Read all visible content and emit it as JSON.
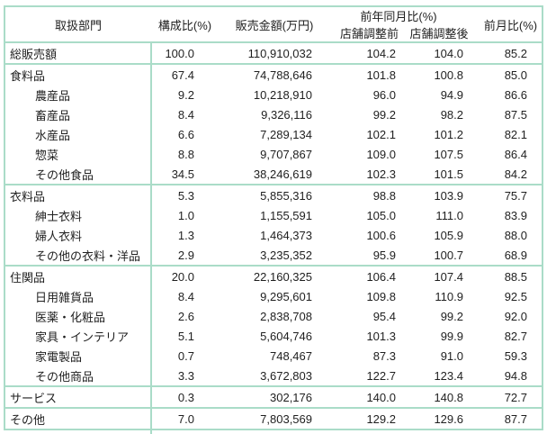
{
  "colors": {
    "border": "#aadcc8",
    "text": "#1f1f1f",
    "background": "#ffffff"
  },
  "table": {
    "headers": {
      "department": "取扱部門",
      "composition": "構成比(%)",
      "sales": "販売金額(万円)",
      "yoy": "前年同月比(%)",
      "yoy_before": "店舗調整前",
      "yoy_after": "店舗調整後",
      "mom": "前月比(%)"
    },
    "rows": [
      {
        "label": "総販売額",
        "composition": "100.0",
        "sales": "110,910,032",
        "yoy_before": "104.2",
        "yoy_after": "104.0",
        "mom": "85.2",
        "indent": false,
        "section_start": false
      },
      {
        "label": "食料品",
        "composition": "67.4",
        "sales": "74,788,646",
        "yoy_before": "101.8",
        "yoy_after": "100.8",
        "mom": "85.0",
        "indent": false,
        "section_start": true
      },
      {
        "label": "農産品",
        "composition": "9.2",
        "sales": "10,218,910",
        "yoy_before": "96.0",
        "yoy_after": "94.9",
        "mom": "86.6",
        "indent": true,
        "section_start": false
      },
      {
        "label": "畜産品",
        "composition": "8.4",
        "sales": "9,326,116",
        "yoy_before": "99.2",
        "yoy_after": "98.2",
        "mom": "87.5",
        "indent": true,
        "section_start": false
      },
      {
        "label": "水産品",
        "composition": "6.6",
        "sales": "7,289,134",
        "yoy_before": "102.1",
        "yoy_after": "101.2",
        "mom": "82.1",
        "indent": true,
        "section_start": false
      },
      {
        "label": "惣菜",
        "composition": "8.8",
        "sales": "9,707,867",
        "yoy_before": "109.0",
        "yoy_after": "107.5",
        "mom": "86.4",
        "indent": true,
        "section_start": false
      },
      {
        "label": "その他食品",
        "composition": "34.5",
        "sales": "38,246,619",
        "yoy_before": "102.3",
        "yoy_after": "101.5",
        "mom": "84.2",
        "indent": true,
        "section_start": false
      },
      {
        "label": "衣料品",
        "composition": "5.3",
        "sales": "5,855,316",
        "yoy_before": "98.8",
        "yoy_after": "103.9",
        "mom": "75.7",
        "indent": false,
        "section_start": true
      },
      {
        "label": "紳士衣料",
        "composition": "1.0",
        "sales": "1,155,591",
        "yoy_before": "105.0",
        "yoy_after": "111.0",
        "mom": "83.9",
        "indent": true,
        "section_start": false
      },
      {
        "label": "婦人衣料",
        "composition": "1.3",
        "sales": "1,464,373",
        "yoy_before": "100.6",
        "yoy_after": "105.9",
        "mom": "88.0",
        "indent": true,
        "section_start": false
      },
      {
        "label": "その他の衣料・洋品",
        "composition": "2.9",
        "sales": "3,235,352",
        "yoy_before": "95.9",
        "yoy_after": "100.7",
        "mom": "68.9",
        "indent": true,
        "section_start": false
      },
      {
        "label": "住関品",
        "composition": "20.0",
        "sales": "22,160,325",
        "yoy_before": "106.4",
        "yoy_after": "107.4",
        "mom": "88.5",
        "indent": false,
        "section_start": true
      },
      {
        "label": "日用雑貨品",
        "composition": "8.4",
        "sales": "9,295,601",
        "yoy_before": "109.8",
        "yoy_after": "110.9",
        "mom": "92.5",
        "indent": true,
        "section_start": false
      },
      {
        "label": "医薬・化粧品",
        "composition": "2.6",
        "sales": "2,838,708",
        "yoy_before": "95.4",
        "yoy_after": "99.2",
        "mom": "92.0",
        "indent": true,
        "section_start": false
      },
      {
        "label": "家具・インテリア",
        "composition": "5.1",
        "sales": "5,604,746",
        "yoy_before": "101.3",
        "yoy_after": "99.9",
        "mom": "82.7",
        "indent": true,
        "section_start": false
      },
      {
        "label": "家電製品",
        "composition": "0.7",
        "sales": "748,467",
        "yoy_before": "87.3",
        "yoy_after": "91.0",
        "mom": "59.3",
        "indent": true,
        "section_start": false
      },
      {
        "label": "その他商品",
        "composition": "3.3",
        "sales": "3,672,803",
        "yoy_before": "122.7",
        "yoy_after": "123.4",
        "mom": "94.8",
        "indent": true,
        "section_start": false
      },
      {
        "label": "サービス",
        "composition": "0.3",
        "sales": "302,176",
        "yoy_before": "140.0",
        "yoy_after": "140.8",
        "mom": "72.7",
        "indent": false,
        "section_start": true
      },
      {
        "label": "その他",
        "composition": "7.0",
        "sales": "7,803,569",
        "yoy_before": "129.2",
        "yoy_after": "129.6",
        "mom": "87.7",
        "indent": false,
        "section_start": true
      }
    ]
  }
}
